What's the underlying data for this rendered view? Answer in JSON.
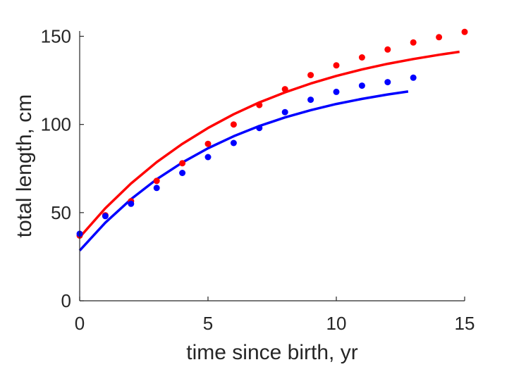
{
  "chart_data": {
    "type": "scatter",
    "title": "",
    "xlabel": "time since birth, yr",
    "ylabel": "total length, cm",
    "xlim": [
      0,
      15
    ],
    "ylim": [
      0,
      153
    ],
    "xticks": [
      "0",
      "5",
      "10",
      "15"
    ],
    "yticks": [
      "0",
      "50",
      "100",
      "150"
    ],
    "grid": false,
    "legend": "none",
    "series": [
      {
        "kind": "points",
        "color": "#ff0000",
        "x": [
          0,
          1,
          2,
          3,
          4,
          5,
          6,
          7,
          8,
          9,
          10,
          11,
          12,
          13,
          14,
          15
        ],
        "y": [
          37,
          48.5,
          56.5,
          68,
          78,
          89,
          100,
          111,
          120,
          128,
          133.5,
          138,
          142.5,
          146.5,
          149.5,
          152.5
        ]
      },
      {
        "kind": "points",
        "color": "#0000ff",
        "x": [
          0,
          1,
          2,
          3,
          4,
          5,
          6,
          7,
          8,
          9,
          10,
          11,
          12,
          13
        ],
        "y": [
          38,
          48,
          55,
          64,
          72.5,
          81.5,
          89.5,
          98,
          107,
          114,
          118.5,
          122,
          124,
          126.5
        ]
      },
      {
        "kind": "line",
        "color": "#ff0000",
        "x": [
          0,
          1,
          2,
          3,
          4,
          5,
          6,
          7,
          8,
          9,
          10,
          11,
          12,
          13,
          14,
          14.8
        ],
        "y": [
          36,
          52.5,
          66.5,
          78.6,
          89,
          98,
          105.8,
          112.5,
          118.2,
          123.2,
          127.5,
          131.2,
          134.4,
          137.1,
          139.5,
          141.2
        ]
      },
      {
        "kind": "line",
        "color": "#0000ff",
        "x": [
          0,
          1,
          2,
          3,
          4,
          5,
          6,
          7,
          8,
          9,
          10,
          11,
          12,
          12.8
        ],
        "y": [
          28.5,
          44.3,
          57.6,
          68.9,
          78.4,
          86.5,
          93.3,
          99.1,
          104,
          108.1,
          111.6,
          114.5,
          117,
          118.7
        ]
      }
    ]
  }
}
